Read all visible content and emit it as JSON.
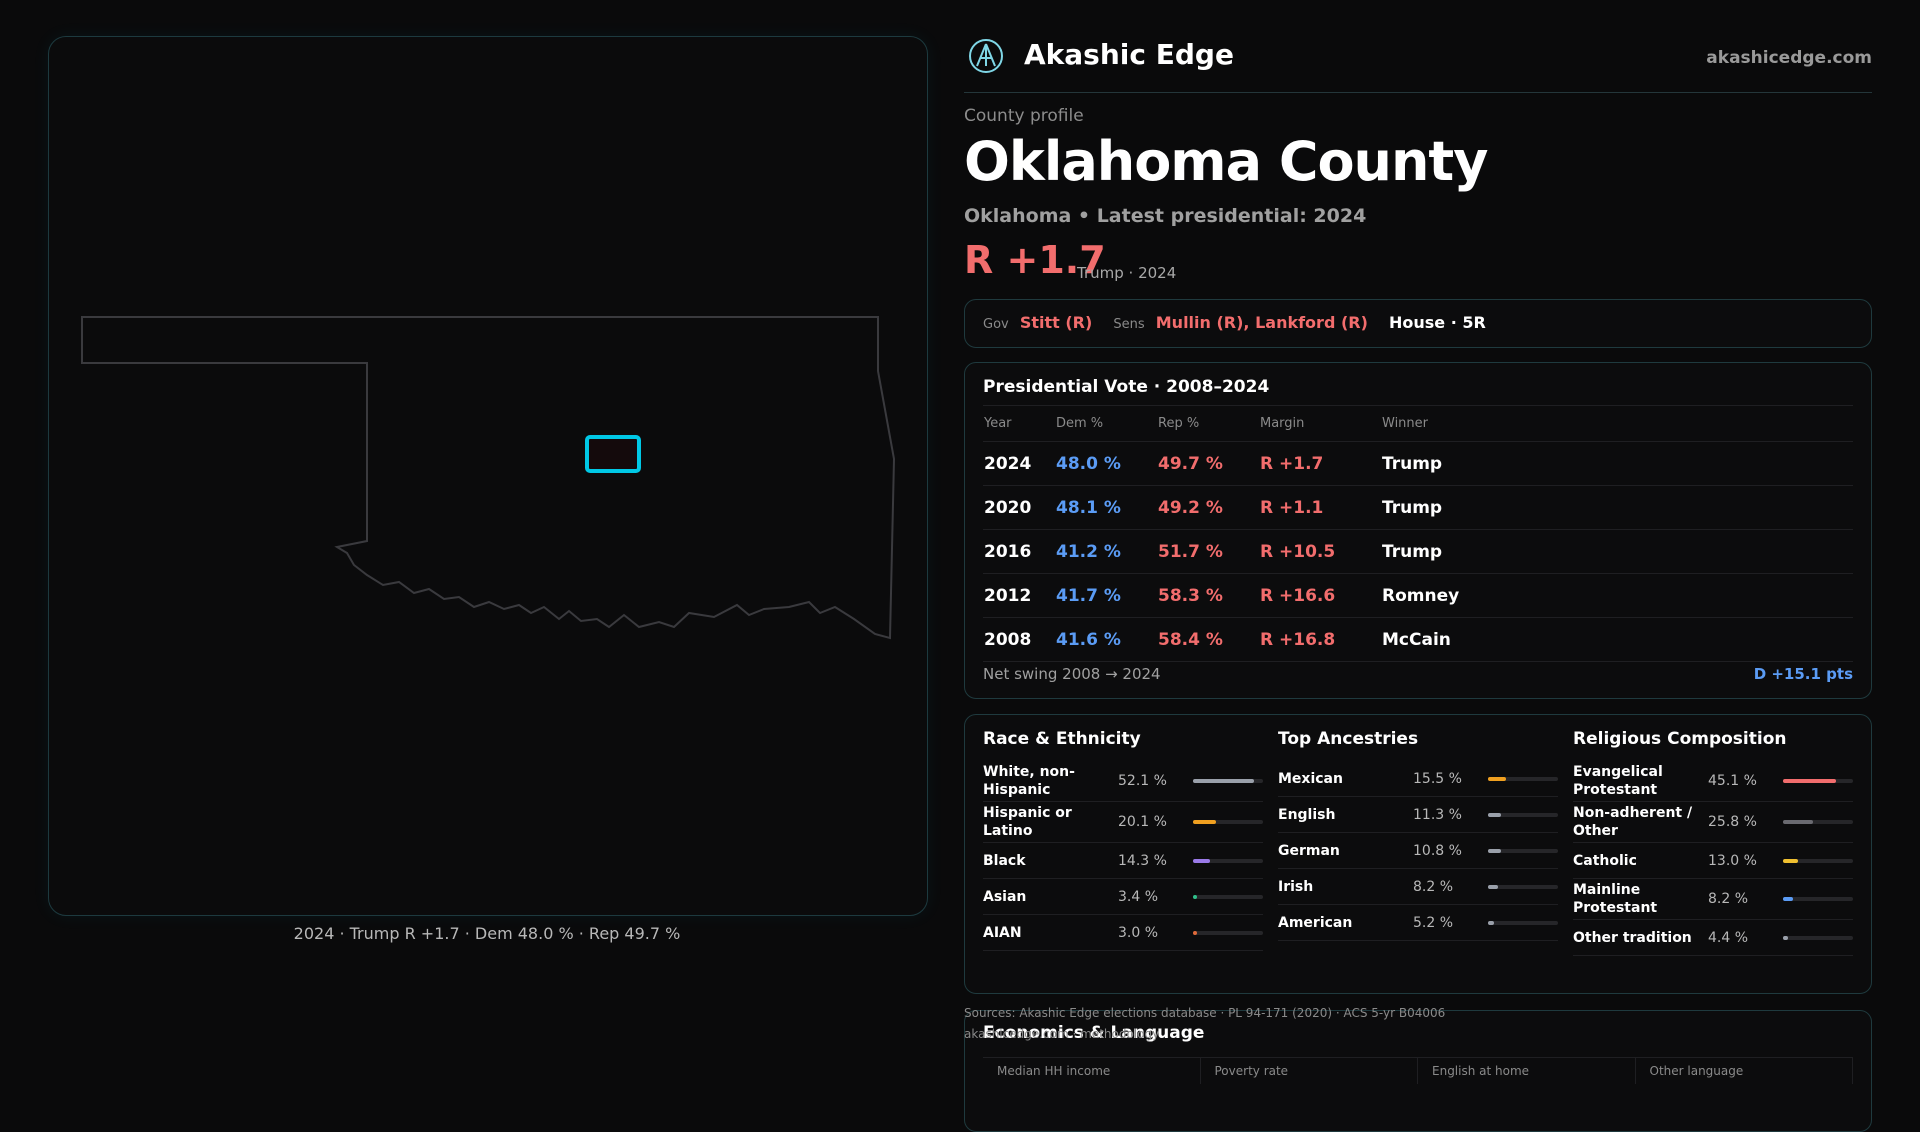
{
  "map": {
    "caption": "2024 · Trump R +1.7 · Dem 48.0 % · Rep 49.7 %",
    "highlight_color": "#00c8e6"
  },
  "brand": {
    "name": "Akashic Edge",
    "url": "akashicedge.com",
    "logo": "akashic-edge-logo-icon"
  },
  "profile": {
    "kicker": "County profile",
    "title": "Oklahoma County",
    "subtitle": "Oklahoma • Latest presidential: 2024",
    "margin": "R +1.7",
    "margin_note": "Trump · 2024"
  },
  "officials": {
    "gov_label": "Gov",
    "gov_value": "Stitt (R)",
    "sens_label": "Sens",
    "sens_value": "Mullin (R), Lankford (R)",
    "house_value": "House · 5R"
  },
  "presidential": {
    "title": "Presidential Vote · 2008–2024",
    "headers": [
      "Year",
      "Dem %",
      "Rep %",
      "Margin",
      "Winner"
    ],
    "rows": [
      {
        "year": "2024",
        "dem": "48.0 %",
        "rep": "49.7 %",
        "margin": "R +1.7",
        "winner": "Trump"
      },
      {
        "year": "2020",
        "dem": "48.1 %",
        "rep": "49.2 %",
        "margin": "R +1.1",
        "winner": "Trump"
      },
      {
        "year": "2016",
        "dem": "41.2 %",
        "rep": "51.7 %",
        "margin": "R +10.5",
        "winner": "Trump"
      },
      {
        "year": "2012",
        "dem": "41.7 %",
        "rep": "58.3 %",
        "margin": "R +16.6",
        "winner": "Romney"
      },
      {
        "year": "2008",
        "dem": "41.6 %",
        "rep": "58.4 %",
        "margin": "R +16.8",
        "winner": "McCain"
      }
    ],
    "swing_label": "Net swing 2008 → 2024",
    "swing_value": "D +15.1 pts"
  },
  "demographics": {
    "race": {
      "title": "Race & Ethnicity",
      "items": [
        {
          "name": "White, non-Hispanic",
          "pct": "52.1 %",
          "value": 52.1,
          "color": "#9aa0aa"
        },
        {
          "name": "Hispanic or Latino",
          "pct": "20.1 %",
          "value": 20.1,
          "color": "#f0a020"
        },
        {
          "name": "Black",
          "pct": "14.3 %",
          "value": 14.3,
          "color": "#9a7ae8"
        },
        {
          "name": "Asian",
          "pct": "3.4 %",
          "value": 3.4,
          "color": "#2fc08a"
        },
        {
          "name": "AIAN",
          "pct": "3.0 %",
          "value": 3.0,
          "color": "#e06a3a"
        }
      ]
    },
    "ancestry": {
      "title": "Top Ancestries",
      "items": [
        {
          "name": "Mexican",
          "pct": "15.5 %",
          "value": 15.5,
          "color": "#f0a020"
        },
        {
          "name": "English",
          "pct": "11.3 %",
          "value": 11.3,
          "color": "#9aa0aa"
        },
        {
          "name": "German",
          "pct": "10.8 %",
          "value": 10.8,
          "color": "#9aa0aa"
        },
        {
          "name": "Irish",
          "pct": "8.2 %",
          "value": 8.2,
          "color": "#9aa0aa"
        },
        {
          "name": "American",
          "pct": "5.2 %",
          "value": 5.2,
          "color": "#9aa0aa"
        }
      ]
    },
    "religion": {
      "title": "Religious Composition",
      "items": [
        {
          "name": "Evangelical Protestant",
          "pct": "45.1 %",
          "value": 45.1,
          "color": "#f26d6d"
        },
        {
          "name": "Non-adherent / Other",
          "pct": "25.8 %",
          "value": 25.8,
          "color": "#6a6a70"
        },
        {
          "name": "Catholic",
          "pct": "13.0 %",
          "value": 13.0,
          "color": "#f0c030"
        },
        {
          "name": "Mainline Protestant",
          "pct": "8.2 %",
          "value": 8.2,
          "color": "#5b9cf5"
        },
        {
          "name": "Other tradition",
          "pct": "4.4 %",
          "value": 4.4,
          "color": "#9aa0aa"
        }
      ]
    }
  },
  "sources": {
    "line1": "Sources: Akashic Edge elections database · PL 94-171 (2020) · ACS 5-yr B04006",
    "line2": "akashicedge.com · methodology"
  },
  "economics": {
    "title": "Economics & Language",
    "columns": [
      "Median HH income",
      "Poverty rate",
      "English at home",
      "Other language"
    ]
  }
}
